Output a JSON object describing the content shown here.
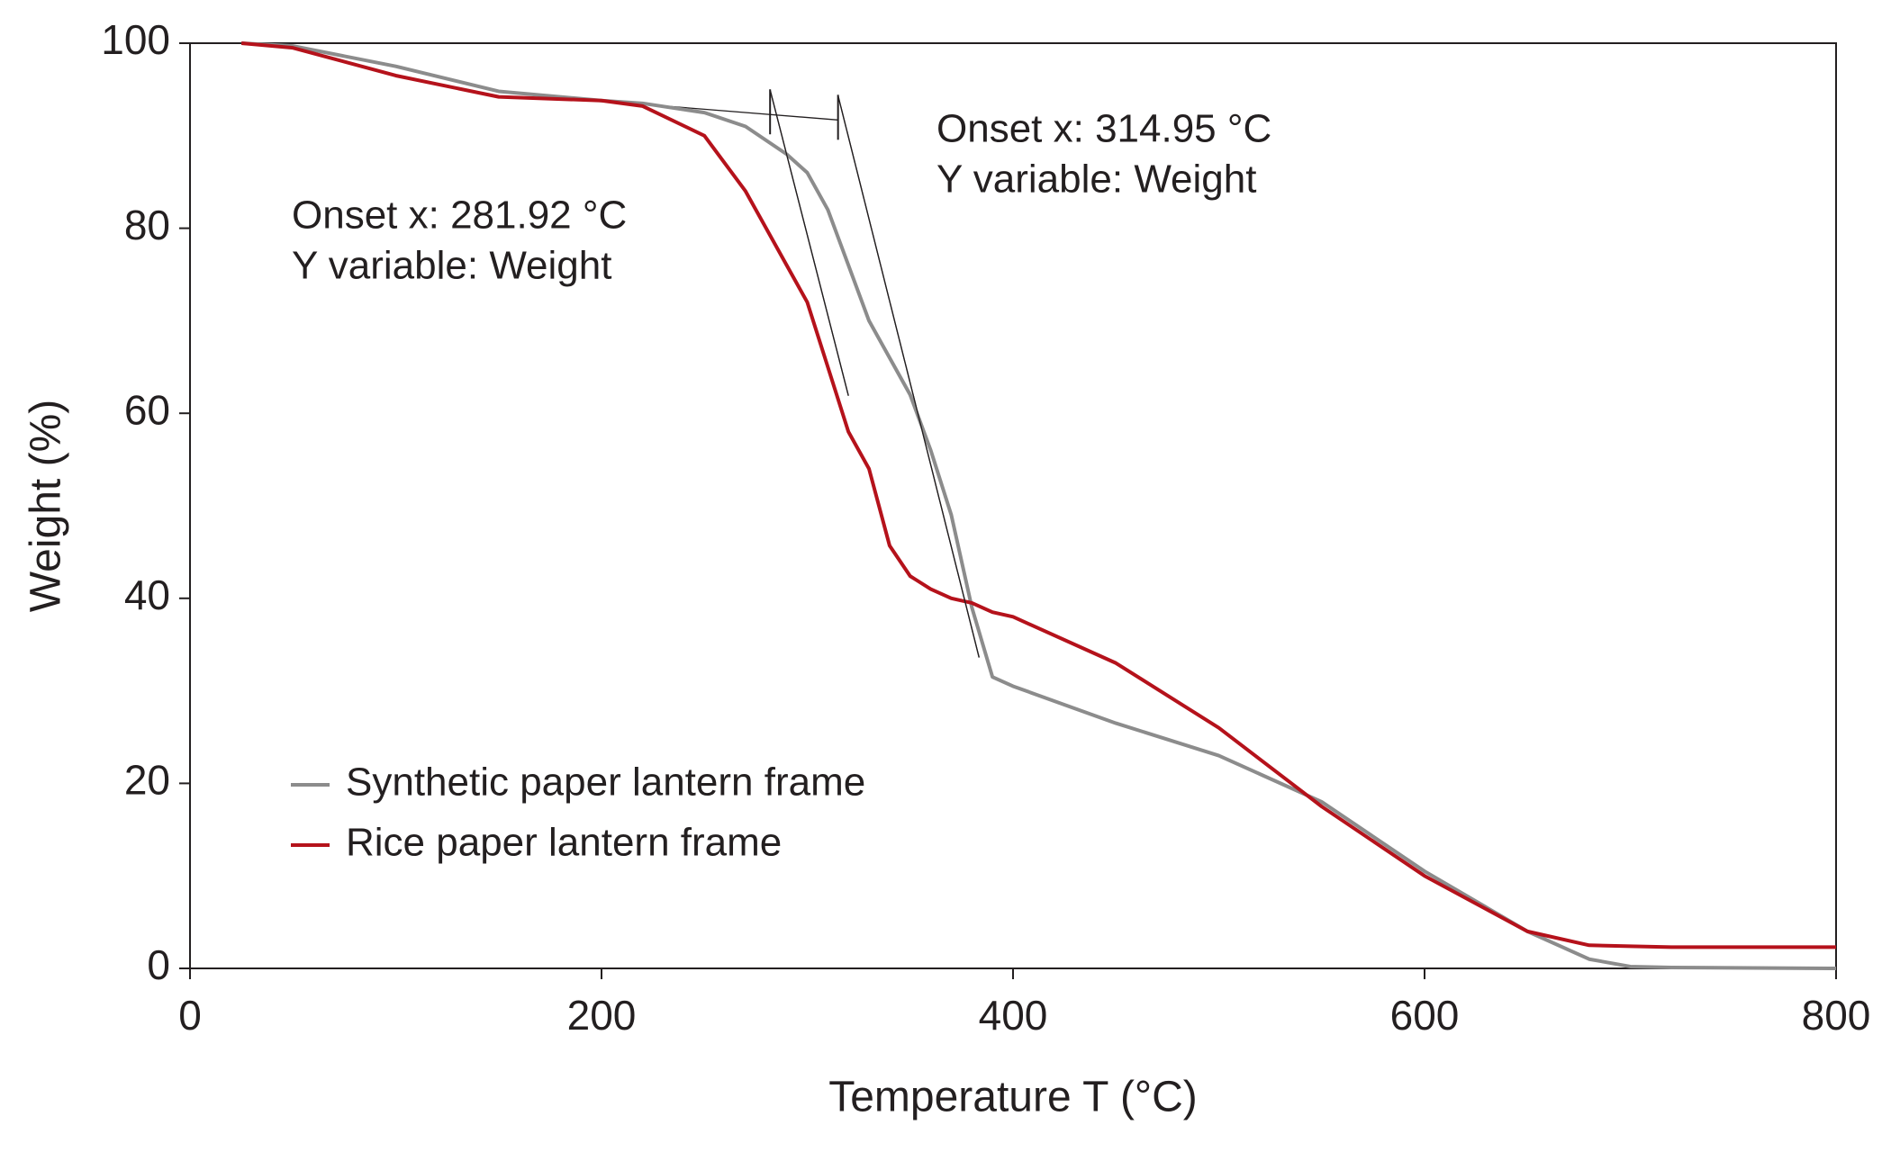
{
  "chart_data": {
    "type": "line",
    "x_label": "Temperature T (°C)",
    "y_label": "Weight (%)",
    "x": [
      25,
      50,
      100,
      150,
      200,
      220,
      250,
      270,
      290,
      300,
      310,
      320,
      330,
      340,
      350,
      360,
      370,
      380,
      390,
      400,
      450,
      500,
      550,
      600,
      650,
      680,
      700,
      720,
      800
    ],
    "series": [
      {
        "name": "Synthetic paper lantern frame",
        "color": "#8c8c8c",
        "values": [
          100,
          99.7,
          97.5,
          94.8,
          93.8,
          93.5,
          92.5,
          91,
          88,
          86,
          82,
          76,
          70,
          66,
          62,
          56,
          49,
          39,
          31.5,
          30.5,
          26.5,
          23,
          18,
          10.5,
          4,
          1,
          0.2,
          0.1,
          0
        ]
      },
      {
        "name": "Rice paper lantern frame",
        "color": "#b5121b",
        "values": [
          100,
          99.5,
          96.5,
          94.2,
          93.8,
          93.2,
          90,
          84,
          76,
          72,
          65,
          58,
          54,
          45.7,
          42.4,
          41,
          40,
          39.5,
          38.5,
          38,
          33,
          26,
          17.5,
          10,
          4,
          2.5,
          2.4,
          2.3,
          2.3
        ]
      }
    ],
    "xlim": [
      0,
      800
    ],
    "xticks": [
      0,
      200,
      400,
      600,
      800
    ],
    "ylim": [
      0,
      100
    ],
    "yticks": [
      0,
      20,
      40,
      60,
      80,
      100
    ],
    "legend": "lower left",
    "baseline": {
      "x": [
        220,
        315
      ],
      "y": [
        93.4,
        91.7
      ]
    },
    "annotations": [
      {
        "lines": [
          "Onset x: 281.92 °C",
          "Y variable: Weight"
        ],
        "onset_x": 281.92,
        "tangent": {
          "x": [
            282,
            320
          ],
          "y": [
            94.9,
            61.9
          ]
        }
      },
      {
        "lines": [
          "Onset x: 314.95 °C",
          "Y variable: Weight"
        ],
        "onset_x": 314.95,
        "tangent": {
          "x": [
            315,
            383.5
          ],
          "y": [
            94.3,
            33.6
          ]
        }
      }
    ]
  }
}
